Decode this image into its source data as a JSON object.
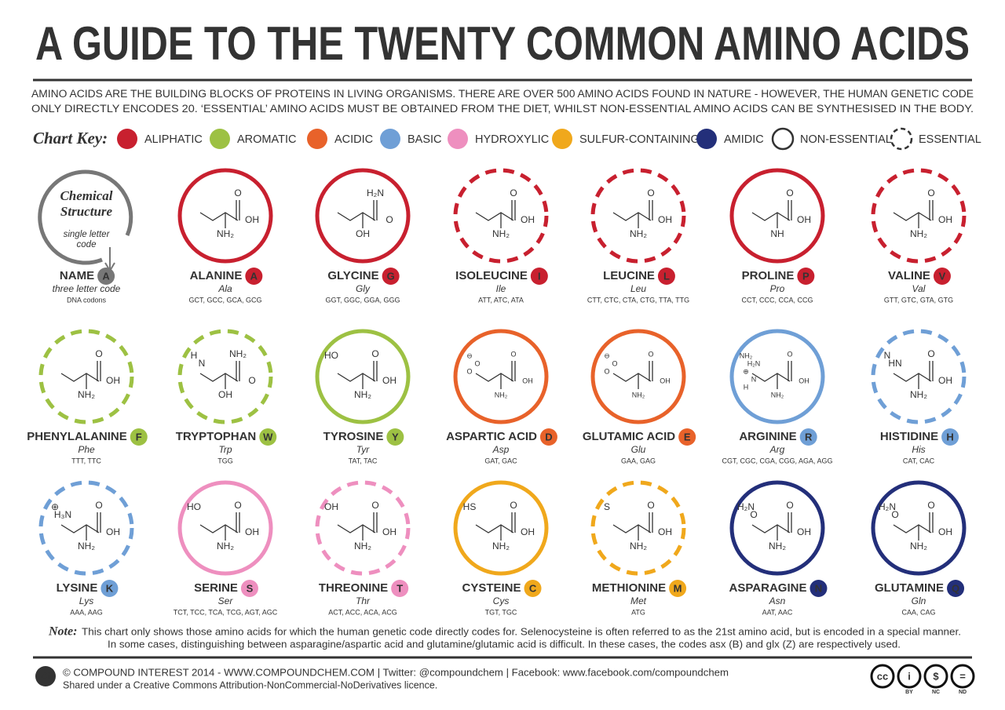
{
  "header": {
    "title": "A GUIDE TO THE TWENTY COMMON AMINO ACIDS",
    "subtitle": [
      "AMINO ACIDS ARE THE BUILDING BLOCKS OF PROTEINS IN LIVING ORGANISMS. THERE ARE OVER 500 AMINO ACIDS FOUND IN NATURE - HOWEVER, THE HUMAN GENETIC CODE",
      "ONLY DIRECTLY ENCODES 20. ‘ESSENTIAL’ AMINO ACIDS MUST BE OBTAINED FROM THE DIET, WHILST NON-ESSENTIAL AMINO ACIDS CAN BE SYNTHESISED IN THE BODY."
    ]
  },
  "key": {
    "label": "Chart Key:",
    "items": [
      {
        "label": "ALIPHATIC",
        "color": "#c8202f",
        "style": "fill"
      },
      {
        "label": "AROMATIC",
        "color": "#9dc143",
        "style": "fill"
      },
      {
        "label": "ACIDIC",
        "color": "#e8622a",
        "style": "fill"
      },
      {
        "label": "BASIC",
        "color": "#6f9fd6",
        "style": "fill"
      },
      {
        "label": "HYDROXYLIC",
        "color": "#ee8fbf",
        "style": "fill"
      },
      {
        "label": "SULFUR-CONTAINING",
        "color": "#f0a81c",
        "style": "fill"
      },
      {
        "label": "AMIDIC",
        "color": "#232f7a",
        "style": "fill"
      },
      {
        "label": "NON-ESSENTIAL",
        "color": "#333333",
        "style": "solid"
      },
      {
        "label": "ESSENTIAL",
        "color": "#333333",
        "style": "dashed"
      }
    ]
  },
  "example": {
    "structure": [
      "Chemical",
      "Structure"
    ],
    "letter_note": [
      "single letter",
      "code"
    ],
    "name": "NAME",
    "letter": "A",
    "code": "three letter code",
    "codons": "DNA codons",
    "color": "#777777"
  },
  "acids": [
    {
      "name": "ALANINE",
      "letter": "A",
      "code": "Ala",
      "codons": "GCT, GCC, GCA, GCG",
      "color": "#c8202f",
      "essential": false,
      "atoms": [
        "O",
        "OH",
        "NH₂"
      ]
    },
    {
      "name": "GLYCINE",
      "letter": "G",
      "code": "Gly",
      "codons": "GGT, GGC, GGA, GGG",
      "color": "#c8202f",
      "essential": false,
      "atoms": [
        "H₂N",
        "O",
        "OH"
      ]
    },
    {
      "name": "ISOLEUCINE",
      "letter": "I",
      "code": "Ile",
      "codons": "ATT, ATC, ATA",
      "color": "#c8202f",
      "essential": true,
      "atoms": [
        "O",
        "OH",
        "NH₂"
      ]
    },
    {
      "name": "LEUCINE",
      "letter": "L",
      "code": "Leu",
      "codons": "CTT, CTC, CTA, CTG, TTA, TTG",
      "color": "#c8202f",
      "essential": true,
      "atoms": [
        "O",
        "OH",
        "NH₂"
      ]
    },
    {
      "name": "PROLINE",
      "letter": "P",
      "code": "Pro",
      "codons": "CCT, CCC, CCA, CCG",
      "color": "#c8202f",
      "essential": false,
      "atoms": [
        "O",
        "OH",
        "NH"
      ]
    },
    {
      "name": "VALINE",
      "letter": "V",
      "code": "Val",
      "codons": "GTT, GTC, GTA, GTG",
      "color": "#c8202f",
      "essential": true,
      "atoms": [
        "O",
        "OH",
        "NH₂"
      ]
    },
    {
      "name": "PHENYLALANINE",
      "letter": "F",
      "code": "Phe",
      "codons": "TTT, TTC",
      "color": "#9dc143",
      "essential": true,
      "atoms": [
        "O",
        "OH",
        "NH₂"
      ]
    },
    {
      "name": "TRYPTOPHAN",
      "letter": "W",
      "code": "Trp",
      "codons": "TGG",
      "color": "#9dc143",
      "essential": true,
      "atoms": [
        "H",
        "N",
        "NH₂",
        "O",
        "OH"
      ]
    },
    {
      "name": "TYROSINE",
      "letter": "Y",
      "code": "Tyr",
      "codons": "TAT, TAC",
      "color": "#9dc143",
      "essential": false,
      "atoms": [
        "HO",
        "O",
        "OH",
        "NH₂"
      ]
    },
    {
      "name": "ASPARTIC ACID",
      "letter": "D",
      "code": "Asp",
      "codons": "GAT, GAC",
      "color": "#e8622a",
      "essential": false,
      "atoms": [
        "⊖",
        "O",
        "O",
        "O",
        "OH",
        "NH₂"
      ]
    },
    {
      "name": "GLUTAMIC ACID",
      "letter": "E",
      "code": "Glu",
      "codons": "GAA, GAG",
      "color": "#e8622a",
      "essential": false,
      "atoms": [
        "⊖",
        "O",
        "O",
        "O",
        "OH",
        "NH₂"
      ]
    },
    {
      "name": "ARGININE",
      "letter": "R",
      "code": "Arg",
      "codons": "CGT, CGC, CGA, CGG, AGA, AGG",
      "color": "#6f9fd6",
      "essential": false,
      "atoms": [
        "NH₂",
        "H₂N",
        "⊕",
        "N",
        "H",
        "O",
        "OH",
        "NH₂"
      ]
    },
    {
      "name": "HISTIDINE",
      "letter": "H",
      "code": "His",
      "codons": "CAT, CAC",
      "color": "#6f9fd6",
      "essential": true,
      "atoms": [
        "N",
        "HN",
        "O",
        "OH",
        "NH₂"
      ]
    },
    {
      "name": "LYSINE",
      "letter": "K",
      "code": "Lys",
      "codons": "AAA, AAG",
      "color": "#6f9fd6",
      "essential": true,
      "atoms": [
        "⊕",
        "H₃N",
        "O",
        "OH",
        "NH₂"
      ]
    },
    {
      "name": "SERINE",
      "letter": "S",
      "code": "Ser",
      "codons": "TCT, TCC, TCA, TCG, AGT, AGC",
      "color": "#ee8fbf",
      "essential": false,
      "atoms": [
        "HO",
        "O",
        "OH",
        "NH₂"
      ]
    },
    {
      "name": "THREONINE",
      "letter": "T",
      "code": "Thr",
      "codons": "ACT, ACC, ACA, ACG",
      "color": "#ee8fbf",
      "essential": true,
      "atoms": [
        "OH",
        "O",
        "OH",
        "NH₂"
      ]
    },
    {
      "name": "CYSTEINE",
      "letter": "C",
      "code": "Cys",
      "codons": "TGT, TGC",
      "color": "#f0a81c",
      "essential": false,
      "atoms": [
        "HS",
        "O",
        "OH",
        "NH₂"
      ]
    },
    {
      "name": "METHIONINE",
      "letter": "M",
      "code": "Met",
      "codons": "ATG",
      "color": "#f0a81c",
      "essential": true,
      "atoms": [
        "S",
        "O",
        "OH",
        "NH₂"
      ]
    },
    {
      "name": "ASPARAGINE",
      "letter": "N",
      "code": "Asn",
      "codons": "AAT, AAC",
      "color": "#232f7a",
      "essential": false,
      "atoms": [
        "H₂N",
        "O",
        "O",
        "OH",
        "NH₂"
      ]
    },
    {
      "name": "GLUTAMINE",
      "letter": "Q",
      "code": "Gln",
      "codons": "CAA, CAG",
      "color": "#232f7a",
      "essential": false,
      "atoms": [
        "H₂N",
        "O",
        "O",
        "OH",
        "NH₂"
      ]
    }
  ],
  "note": {
    "label": "Note:",
    "lines": [
      "This chart only shows those amino acids for which the human genetic code directly codes for. Selenocysteine is often referred to as the 21st amino acid, but is encoded in a special manner.",
      "In some cases, distinguishing between asparagine/aspartic acid and glutamine/glutamic acid is difficult. In these cases, the codes asx (B) and glx (Z) are respectively used."
    ]
  },
  "footer": {
    "logo": "Ci",
    "credit": "© COMPOUND INTEREST 2014 - WWW.COMPOUNDCHEM.COM | Twitter: @compoundchem | Facebook: www.facebook.com/compoundchem",
    "licence": "Shared under a Creative Commons Attribution-NonCommercial-NoDerivatives licence.",
    "badges": [
      {
        "symbol": "cc",
        "label": ""
      },
      {
        "symbol": "i",
        "label": "BY"
      },
      {
        "symbol": "$",
        "label": "NC"
      },
      {
        "symbol": "=",
        "label": "ND"
      }
    ]
  }
}
